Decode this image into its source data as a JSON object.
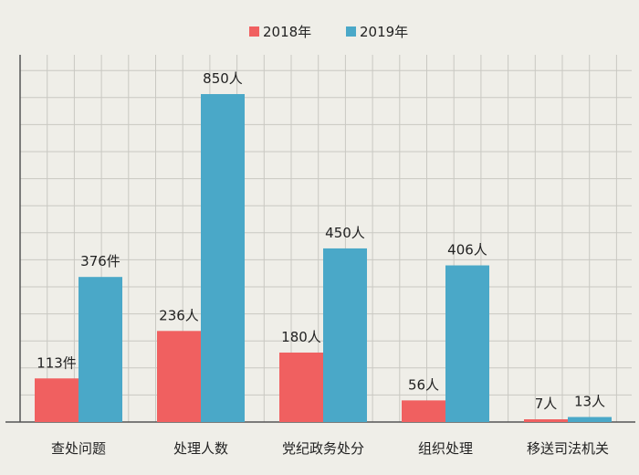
{
  "chart_data": {
    "type": "bar",
    "title": "",
    "xlabel": "",
    "ylabel": "",
    "ylim": [
      0,
      900
    ],
    "grid": true,
    "legend_position": "top-center",
    "categories": [
      "查处问题",
      "处理人数",
      "党纪政务处分",
      "组织处理",
      "移送司法机关"
    ],
    "series": [
      {
        "name": "2018年",
        "color": "#f06060",
        "values": [
          113,
          236,
          180,
          56,
          7
        ],
        "labels": [
          "113件",
          "236人",
          "180人",
          "56人",
          "7人"
        ]
      },
      {
        "name": "2019年",
        "color": "#4aa8c8",
        "values": [
          376,
          850,
          450,
          406,
          13
        ],
        "labels": [
          "376件",
          "850人",
          "450人",
          "406人",
          "13人"
        ]
      }
    ]
  }
}
